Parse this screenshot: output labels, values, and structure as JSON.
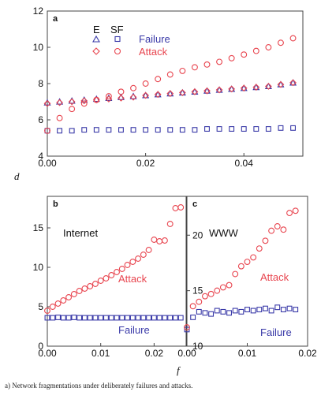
{
  "caption": "a) Network fragmentations under deliberately failures and attacks.",
  "axis_labels": {
    "y": "d",
    "x": "f"
  },
  "colors": {
    "failure": "#3a3aa8",
    "attack": "#e8454f",
    "frame": "#444444"
  },
  "chart_data": [
    {
      "panel": "a",
      "type": "scatter",
      "xlim": [
        0,
        0.052
      ],
      "ylim": [
        4,
        12
      ],
      "xticks": [
        0,
        0.02,
        0.04
      ],
      "xtick_labels": [
        "0.00",
        "0.02",
        "0.04"
      ],
      "yticks": [
        4,
        6,
        8,
        10,
        12
      ],
      "ytick_labels": [
        "4",
        "6",
        "8",
        "10",
        "12"
      ],
      "legend": {
        "placement": "top-left",
        "col_e": "E",
        "col_sf": "SF",
        "failure": "Failure",
        "attack": "Attack"
      },
      "series": [
        {
          "name": "E Failure",
          "marker": "triangle",
          "color": "#3a3aa8",
          "x": [
            0,
            0.0025,
            0.005,
            0.0075,
            0.01,
            0.0125,
            0.015,
            0.0175,
            0.02,
            0.0225,
            0.025,
            0.0275,
            0.03,
            0.0325,
            0.035,
            0.0375,
            0.04,
            0.0425,
            0.045,
            0.0475,
            0.05
          ],
          "y": [
            6.95,
            7.0,
            7.05,
            7.1,
            7.15,
            7.2,
            7.25,
            7.3,
            7.35,
            7.4,
            7.45,
            7.5,
            7.55,
            7.6,
            7.65,
            7.7,
            7.75,
            7.8,
            7.85,
            7.95,
            8.05
          ]
        },
        {
          "name": "E Attack",
          "marker": "diamond",
          "color": "#e8454f",
          "x": [
            0,
            0.0025,
            0.005,
            0.0075,
            0.01,
            0.0125,
            0.015,
            0.0175,
            0.02,
            0.0225,
            0.025,
            0.0275,
            0.03,
            0.0325,
            0.035,
            0.0375,
            0.04,
            0.0425,
            0.045,
            0.0475,
            0.05
          ],
          "y": [
            6.9,
            6.95,
            7.0,
            7.05,
            7.1,
            7.15,
            7.2,
            7.25,
            7.35,
            7.4,
            7.45,
            7.5,
            7.55,
            7.6,
            7.65,
            7.7,
            7.75,
            7.8,
            7.85,
            7.95,
            8.05
          ]
        },
        {
          "name": "SF Failure",
          "marker": "square",
          "color": "#3a3aa8",
          "x": [
            0,
            0.0025,
            0.005,
            0.0075,
            0.01,
            0.0125,
            0.015,
            0.0175,
            0.02,
            0.0225,
            0.025,
            0.0275,
            0.03,
            0.0325,
            0.035,
            0.0375,
            0.04,
            0.0425,
            0.045,
            0.0475,
            0.05
          ],
          "y": [
            5.4,
            5.4,
            5.4,
            5.45,
            5.45,
            5.45,
            5.45,
            5.45,
            5.45,
            5.45,
            5.45,
            5.45,
            5.45,
            5.5,
            5.5,
            5.5,
            5.5,
            5.5,
            5.5,
            5.55,
            5.55
          ]
        },
        {
          "name": "SF Attack",
          "marker": "circle",
          "color": "#e8454f",
          "x": [
            0,
            0.0025,
            0.005,
            0.0075,
            0.01,
            0.0125,
            0.015,
            0.0175,
            0.02,
            0.0225,
            0.025,
            0.0275,
            0.03,
            0.0325,
            0.035,
            0.0375,
            0.04,
            0.0425,
            0.045,
            0.0475,
            0.05
          ],
          "y": [
            5.4,
            6.1,
            6.6,
            6.9,
            7.1,
            7.3,
            7.55,
            7.75,
            8.0,
            8.25,
            8.5,
            8.7,
            8.9,
            9.05,
            9.2,
            9.4,
            9.6,
            9.8,
            10.0,
            10.25,
            10.5
          ]
        }
      ]
    },
    {
      "panel": "b",
      "type": "scatter",
      "annotation": "Internet",
      "label_attack": "Attack",
      "label_failure": "Failure",
      "xlim": [
        0,
        0.026
      ],
      "ylim": [
        0,
        19
      ],
      "xticks": [
        0,
        0.01,
        0.02
      ],
      "xtick_labels": [
        "0.00",
        "0.01",
        "0.02"
      ],
      "yticks": [
        0,
        5,
        10,
        15
      ],
      "ytick_labels": [
        "0",
        "5",
        "10",
        "15"
      ],
      "series": [
        {
          "name": "Failure",
          "marker": "square",
          "color": "#3a3aa8",
          "x": [
            0,
            0.001,
            0.002,
            0.003,
            0.004,
            0.005,
            0.006,
            0.007,
            0.008,
            0.009,
            0.01,
            0.011,
            0.012,
            0.013,
            0.014,
            0.015,
            0.016,
            0.017,
            0.018,
            0.019,
            0.02,
            0.021,
            0.022,
            0.023,
            0.024,
            0.025
          ],
          "y": [
            3.6,
            3.6,
            3.65,
            3.6,
            3.6,
            3.65,
            3.6,
            3.6,
            3.6,
            3.6,
            3.6,
            3.6,
            3.6,
            3.6,
            3.6,
            3.6,
            3.6,
            3.6,
            3.6,
            3.6,
            3.6,
            3.6,
            3.6,
            3.6,
            3.6,
            3.6
          ]
        },
        {
          "name": "Attack",
          "marker": "circle",
          "color": "#e8454f",
          "x": [
            0,
            0.001,
            0.002,
            0.003,
            0.004,
            0.005,
            0.006,
            0.007,
            0.008,
            0.009,
            0.01,
            0.011,
            0.012,
            0.013,
            0.014,
            0.015,
            0.016,
            0.017,
            0.018,
            0.019,
            0.02,
            0.021,
            0.022,
            0.023,
            0.024,
            0.025
          ],
          "y": [
            4.5,
            5.0,
            5.4,
            5.8,
            6.2,
            6.6,
            7.0,
            7.3,
            7.6,
            7.9,
            8.3,
            8.6,
            9.0,
            9.4,
            9.8,
            10.3,
            10.7,
            11.1,
            11.6,
            12.2,
            13.5,
            13.3,
            13.4,
            15.5,
            17.5,
            17.6
          ]
        }
      ]
    },
    {
      "panel": "c",
      "type": "scatter",
      "annotation": "WWW",
      "label_attack": "Attack",
      "label_failure": "Failure",
      "xlim": [
        0,
        0.02
      ],
      "ylim": [
        10,
        23.5
      ],
      "xticks": [
        0,
        0.01,
        0.02
      ],
      "xtick_labels": [
        "0.00",
        "0.01",
        "0.02"
      ],
      "yticks": [
        10,
        15,
        20
      ],
      "ytick_labels": [
        "10",
        "15",
        "20"
      ],
      "series": [
        {
          "name": "Failure",
          "marker": "square",
          "color": "#3a3aa8",
          "x": [
            0,
            0.001,
            0.002,
            0.003,
            0.004,
            0.005,
            0.006,
            0.007,
            0.008,
            0.009,
            0.01,
            0.011,
            0.012,
            0.013,
            0.014,
            0.015,
            0.016,
            0.017,
            0.018
          ],
          "y": [
            11.5,
            12.6,
            13.1,
            13.0,
            12.9,
            13.2,
            13.1,
            13.0,
            13.2,
            13.1,
            13.3,
            13.2,
            13.3,
            13.4,
            13.2,
            13.5,
            13.3,
            13.4,
            13.3
          ]
        },
        {
          "name": "Attack",
          "marker": "circle",
          "color": "#e8454f",
          "x": [
            0,
            0.001,
            0.002,
            0.003,
            0.004,
            0.005,
            0.006,
            0.007,
            0.008,
            0.009,
            0.01,
            0.011,
            0.012,
            0.013,
            0.014,
            0.015,
            0.016,
            0.017,
            0.018
          ],
          "y": [
            11.7,
            13.6,
            14.0,
            14.5,
            14.7,
            15.0,
            15.3,
            15.5,
            16.5,
            17.2,
            17.6,
            18.0,
            18.8,
            19.5,
            20.4,
            20.8,
            20.5,
            22.0,
            22.2
          ]
        }
      ]
    }
  ]
}
